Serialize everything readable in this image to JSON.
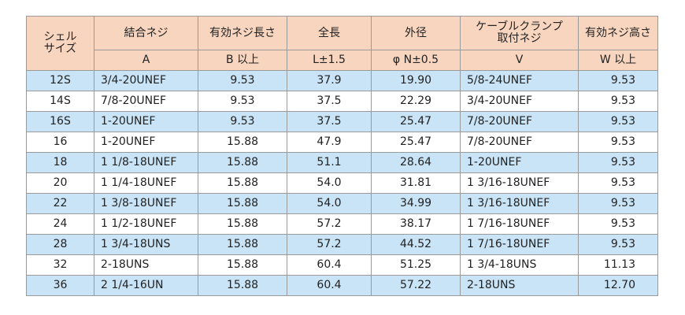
{
  "headers": {
    "shell_size": [
      "シェル",
      "サイズ"
    ],
    "coupling_thread": "結合ネジ",
    "effective_thread_length": "有効ネジ長さ",
    "overall_length": "全長",
    "outer_diameter": "外径",
    "cable_clamp_thread": [
      "ケーブルクランプ",
      "取付ネジ"
    ],
    "effective_thread_height": "有効ネジ高さ"
  },
  "subheaders": {
    "coupling_thread": "A",
    "effective_thread_length": "B 以上",
    "overall_length": "L±1.5",
    "outer_diameter": "φ N±0.5",
    "cable_clamp_thread": "V",
    "effective_thread_height": "W 以上"
  },
  "rows": [
    {
      "size": "12S",
      "a": "3/4-20UNEF",
      "b": "9.53",
      "l": "37.9",
      "n": "19.90",
      "v": "5/8-24UNEF",
      "w": "9.53"
    },
    {
      "size": "14S",
      "a": "7/8-20UNEF",
      "b": "9.53",
      "l": "37.5",
      "n": "22.29",
      "v": "3/4-20UNEF",
      "w": "9.53"
    },
    {
      "size": "16S",
      "a": "1-20UNEF",
      "b": "9.53",
      "l": "37.5",
      "n": "25.47",
      "v": "7/8-20UNEF",
      "w": "9.53"
    },
    {
      "size": "16",
      "a": "1-20UNEF",
      "b": "15.88",
      "l": "47.9",
      "n": "25.47",
      "v": "7/8-20UNEF",
      "w": "9.53"
    },
    {
      "size": "18",
      "a": "1 1/8-18UNEF",
      "b": "15.88",
      "l": "51.1",
      "n": "28.64",
      "v": "1-20UNEF",
      "w": "9.53"
    },
    {
      "size": "20",
      "a": "1 1/4-18UNEF",
      "b": "15.88",
      "l": "54.0",
      "n": "31.81",
      "v": "1 3/16-18UNEF",
      "w": "9.53"
    },
    {
      "size": "22",
      "a": "1 3/8-18UNEF",
      "b": "15.88",
      "l": "54.0",
      "n": "34.99",
      "v": "1 3/16-18UNEF",
      "w": "9.53"
    },
    {
      "size": "24",
      "a": "1 1/2-18UNEF",
      "b": "15.88",
      "l": "57.2",
      "n": "38.17",
      "v": "1 7/16-18UNEF",
      "w": "9.53"
    },
    {
      "size": "28",
      "a": "1 3/4-18UNS",
      "b": "15.88",
      "l": "57.2",
      "n": "44.52",
      "v": "1 7/16-18UNEF",
      "w": "9.53"
    },
    {
      "size": "32",
      "a": "2-18UNS",
      "b": "15.88",
      "l": "60.4",
      "n": "51.25",
      "v": "1 3/4-18UNS",
      "w": "11.13"
    },
    {
      "size": "36",
      "a": "2 1/4-16UN",
      "b": "15.88",
      "l": "60.4",
      "n": "57.22",
      "v": "2-18UNS",
      "w": "12.70"
    }
  ],
  "colors": {
    "header_bg": "#f8d5bf",
    "stripe_bg": "#c9e4f6",
    "border": "#9a9a9a"
  }
}
